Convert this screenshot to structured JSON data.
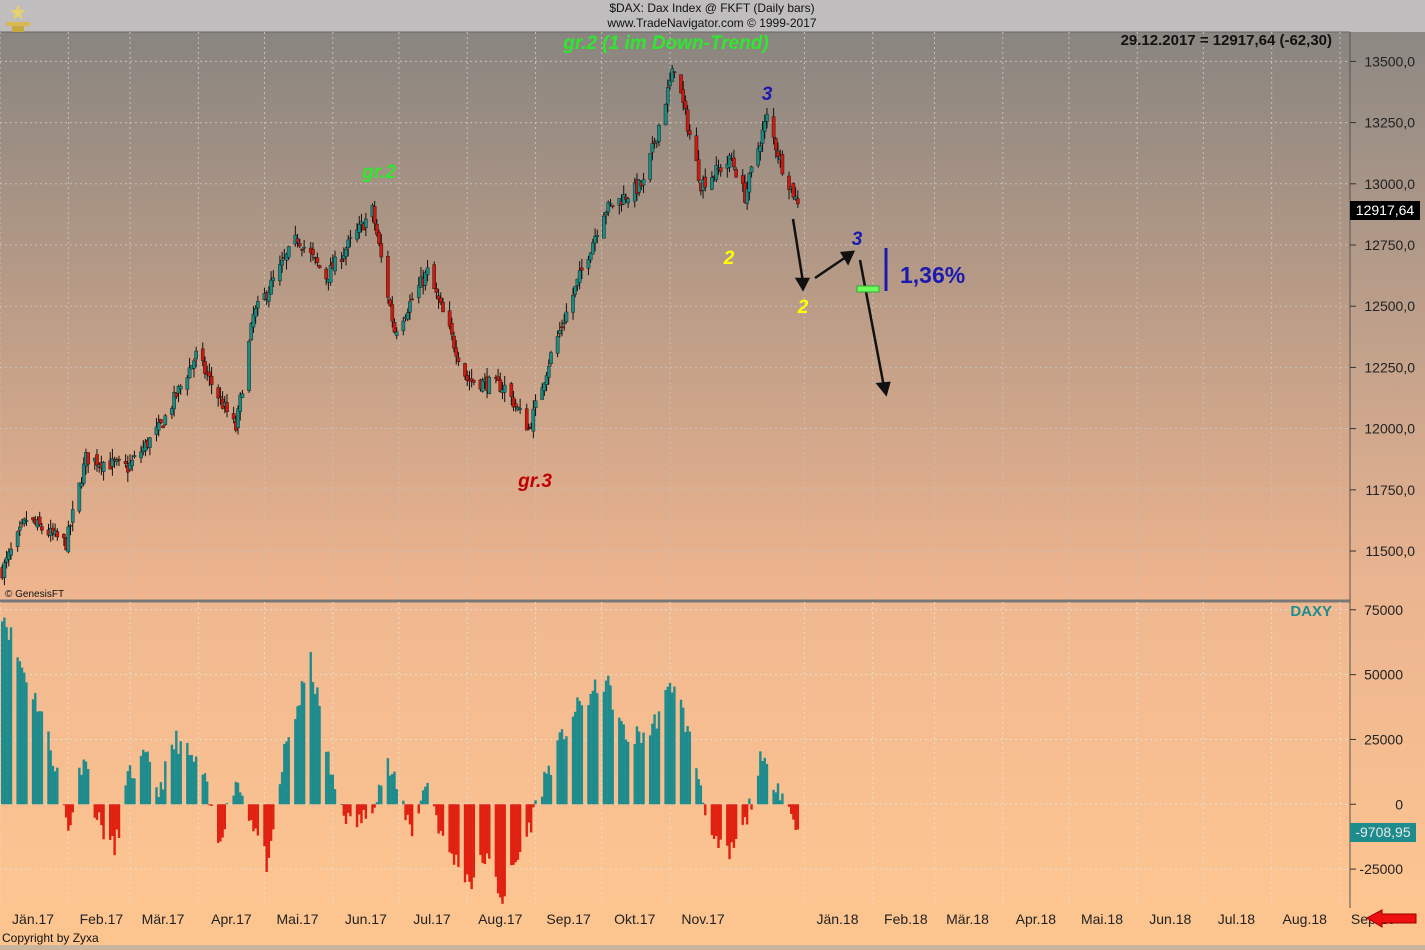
{
  "header": {
    "symbol_line": "$DAX:  Dax Index @ FKFT  (Daily bars)",
    "source_line": "www.TradeNavigator.com © 1999-2017",
    "last_quote": "29.12.2017 = 12917,64 (-62,30)",
    "last_price_tag": "12917,64"
  },
  "footer": {
    "copyright": "Copyright by Zyxa",
    "genesis": "© GenesisFT"
  },
  "annotations": {
    "title_wave": "gr.2 (1 im Down-Trend)",
    "gr2": "gr.2",
    "gr3": "gr.3",
    "wave3_top": "3",
    "wave2_dec": "2",
    "wave2_future": "2",
    "wave3_future": "3",
    "pct": "1,36%"
  },
  "colors": {
    "bull": "#1a8a82",
    "bear": "#cc1a10",
    "green_text": "#2ee82e",
    "red_text": "#c00000",
    "blue_text": "#1a1ab0",
    "yellow_text": "#ffff00",
    "indicator_pos": "#1e8c8c",
    "indicator_neg": "#e02010"
  },
  "chart_data": [
    {
      "type": "candlestick",
      "name": "DAX",
      "ylim": [
        11300,
        13620
      ],
      "yticks": [
        "13500,0",
        "13250,0",
        "13000,0",
        "12750,0",
        "12500,0",
        "12250,0",
        "12000,0",
        "11750,0",
        "11500,0"
      ],
      "ytick_values": [
        13500,
        13250,
        13000,
        12750,
        12500,
        12250,
        12000,
        11750,
        11500
      ],
      "x_months": [
        "Jän.17",
        "Feb.17",
        "Mär.17",
        "Apr.17",
        "Mai.17",
        "Jun.17",
        "Jul.17",
        "Aug.17",
        "Sep.17",
        "Okt.17",
        "Nov.17",
        "Jän.18",
        "Feb.18",
        "Mär.18",
        "Apr.18",
        "Mai.18",
        "Jun.18",
        "Jul.18",
        "Aug.18",
        "Sep.18"
      ],
      "anchors": [
        {
          "x": "2017-01-02",
          "close": 11420
        },
        {
          "x": "2017-01-13",
          "close": 11630
        },
        {
          "x": "2017-01-31",
          "close": 11530
        },
        {
          "x": "2017-02-09",
          "close": 11880
        },
        {
          "x": "2017-02-28",
          "close": 11840
        },
        {
          "x": "2017-03-15",
          "close": 12010
        },
        {
          "x": "2017-03-31",
          "close": 12300
        },
        {
          "x": "2017-04-18",
          "close": 12000
        },
        {
          "x": "2017-04-26",
          "close": 12460
        },
        {
          "x": "2017-05-16",
          "close": 12780
        },
        {
          "x": "2017-05-29",
          "close": 12620
        },
        {
          "x": "2017-06-19",
          "close": 12890
        },
        {
          "x": "2017-06-29",
          "close": 12400
        },
        {
          "x": "2017-07-14",
          "close": 12640
        },
        {
          "x": "2017-08-01",
          "close": 12200
        },
        {
          "x": "2017-08-18",
          "close": 12170
        },
        {
          "x": "2017-08-29",
          "close": 12000
        },
        {
          "x": "2017-09-08",
          "close": 12300
        },
        {
          "x": "2017-09-21",
          "close": 12620
        },
        {
          "x": "2017-10-02",
          "close": 12890
        },
        {
          "x": "2017-10-20",
          "close": 13000
        },
        {
          "x": "2017-11-03",
          "close": 13480
        },
        {
          "x": "2017-11-15",
          "close": 13000
        },
        {
          "x": "2017-11-29",
          "close": 13100
        },
        {
          "x": "2017-12-05",
          "close": 12950
        },
        {
          "x": "2017-12-12",
          "close": 13180
        },
        {
          "x": "2017-12-15",
          "close": 13270
        },
        {
          "x": "2017-12-22",
          "close": 13070
        },
        {
          "x": "2017-12-29",
          "close": 12917.64
        }
      ]
    },
    {
      "type": "bar",
      "name": "DAXY",
      "ylim": [
        -40000,
        78000
      ],
      "yticks": [
        "75000",
        "50000",
        "25000",
        "0",
        "-25000"
      ],
      "ytick_values": [
        75000,
        50000,
        25000,
        0,
        -25000
      ],
      "last_value_tag": "-9708,95",
      "anchors": [
        {
          "x": "2017-01-02",
          "value": 75000
        },
        {
          "x": "2017-01-10",
          "value": 55000
        },
        {
          "x": "2017-01-20",
          "value": 35000
        },
        {
          "x": "2017-01-27",
          "value": 12000
        },
        {
          "x": "2017-02-01",
          "value": -10000
        },
        {
          "x": "2017-02-08",
          "value": 20000
        },
        {
          "x": "2017-02-14",
          "value": -5000
        },
        {
          "x": "2017-02-22",
          "value": -18000
        },
        {
          "x": "2017-02-28",
          "value": 10000
        },
        {
          "x": "2017-03-08",
          "value": 18000
        },
        {
          "x": "2017-03-14",
          "value": 5000
        },
        {
          "x": "2017-03-22",
          "value": 25000
        },
        {
          "x": "2017-04-03",
          "value": 12000
        },
        {
          "x": "2017-04-10",
          "value": -15000
        },
        {
          "x": "2017-04-18",
          "value": 10000
        },
        {
          "x": "2017-04-25",
          "value": -5000
        },
        {
          "x": "2017-05-03",
          "value": -25000
        },
        {
          "x": "2017-05-10",
          "value": 20000
        },
        {
          "x": "2017-05-22",
          "value": 55000
        },
        {
          "x": "2017-06-01",
          "value": 8000
        },
        {
          "x": "2017-06-09",
          "value": -8000
        },
        {
          "x": "2017-06-16",
          "value": -5000
        },
        {
          "x": "2017-06-26",
          "value": 15000
        },
        {
          "x": "2017-07-07",
          "value": -10000
        },
        {
          "x": "2017-07-14",
          "value": 10000
        },
        {
          "x": "2017-07-21",
          "value": -15000
        },
        {
          "x": "2017-08-03",
          "value": -30000
        },
        {
          "x": "2017-08-09",
          "value": -20000
        },
        {
          "x": "2017-08-17",
          "value": -36000
        },
        {
          "x": "2017-08-28",
          "value": -12000
        },
        {
          "x": "2017-09-05",
          "value": 10000
        },
        {
          "x": "2017-09-18",
          "value": 35000
        },
        {
          "x": "2017-10-03",
          "value": 48000
        },
        {
          "x": "2017-10-12",
          "value": 25000
        },
        {
          "x": "2017-10-23",
          "value": 28000
        },
        {
          "x": "2017-11-03",
          "value": 48000
        },
        {
          "x": "2017-11-13",
          "value": 15000
        },
        {
          "x": "2017-11-21",
          "value": -16000
        },
        {
          "x": "2017-11-28",
          "value": -20000
        },
        {
          "x": "2017-12-05",
          "value": -8000
        },
        {
          "x": "2017-12-12",
          "value": 16000
        },
        {
          "x": "2017-12-20",
          "value": 8000
        },
        {
          "x": "2017-12-29",
          "value": -9708.95
        }
      ]
    }
  ]
}
